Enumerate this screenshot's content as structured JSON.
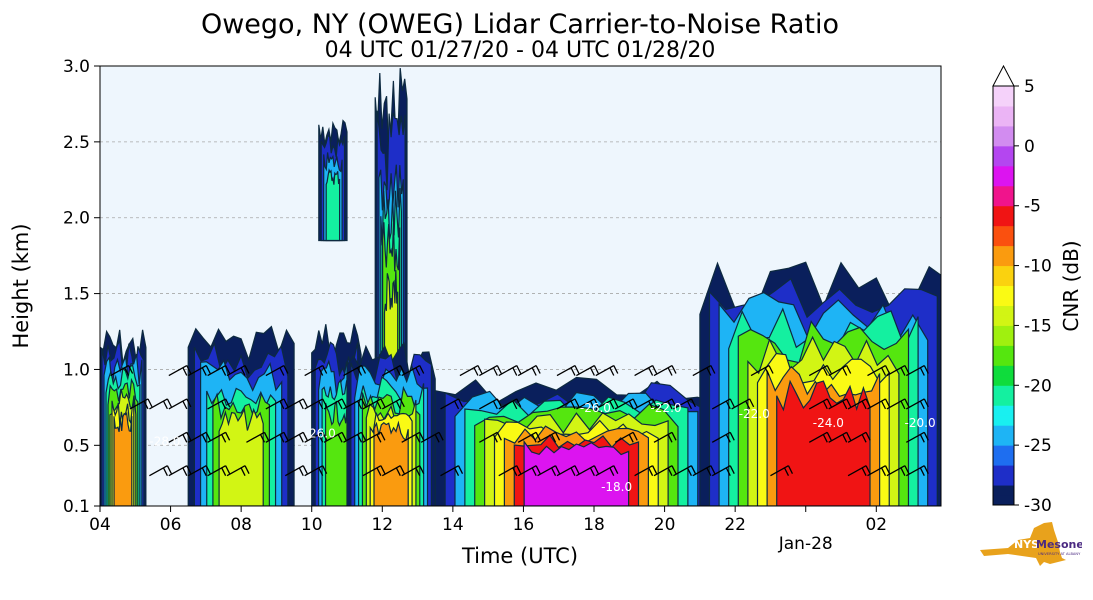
{
  "chart_data": {
    "type": "heatmap",
    "title": "Owego, NY (OWEG) Lidar Carrier-to-Noise Ratio",
    "subtitle": "04 UTC 01/27/20 - 04 UTC 01/28/20",
    "xlabel": "Time (UTC)",
    "ylabel": "Height (km)",
    "xlim": [
      "2020-01-27T04:00Z",
      "2020-01-28T03:50Z"
    ],
    "ylim": [
      0.1,
      3.0
    ],
    "x_ticks": [
      {
        "time": "2020-01-27T04:00Z",
        "label": "04"
      },
      {
        "time": "2020-01-27T06:00Z",
        "label": "06"
      },
      {
        "time": "2020-01-27T08:00Z",
        "label": "08"
      },
      {
        "time": "2020-01-27T10:00Z",
        "label": "10"
      },
      {
        "time": "2020-01-27T12:00Z",
        "label": "12"
      },
      {
        "time": "2020-01-27T14:00Z",
        "label": "14"
      },
      {
        "time": "2020-01-27T16:00Z",
        "label": "16"
      },
      {
        "time": "2020-01-27T18:00Z",
        "label": "18"
      },
      {
        "time": "2020-01-27T20:00Z",
        "label": "20"
      },
      {
        "time": "2020-01-27T22:00Z",
        "label": "22"
      },
      {
        "time": "2020-01-28T00:00Z",
        "label": "Jan-28"
      },
      {
        "time": "2020-01-28T02:00Z",
        "label": "02"
      }
    ],
    "y_ticks": [
      {
        "value": 0.1,
        "label": "0.1"
      },
      {
        "value": 0.5,
        "label": "0.5"
      },
      {
        "value": 1.0,
        "label": "1.0"
      },
      {
        "value": 1.5,
        "label": "1.5"
      },
      {
        "value": 2.0,
        "label": "2.0"
      },
      {
        "value": 2.5,
        "label": "2.5"
      },
      {
        "value": 3.0,
        "label": "3.0"
      }
    ],
    "grid": "horizontal dashed",
    "colorbar": {
      "label": "CNR (dB)",
      "min": -30,
      "max": 5,
      "extend": "max",
      "ticks": [
        5,
        0,
        -5,
        -10,
        -15,
        -20,
        -25,
        -30
      ],
      "tick_labels": [
        "5",
        "0",
        "-5",
        "-10",
        "-15",
        "-20",
        "-25",
        "-30"
      ],
      "colors": [
        "#0a1f5c",
        "#0a1f5c",
        "#1e2ec8",
        "#1e2ec8",
        "#1e6ef0",
        "#1e6ef0",
        "#1eb4f5",
        "#1eb4f5",
        "#19f0f0",
        "#19f0f0",
        "#14f0a0",
        "#14f0a0",
        "#0fdc3c",
        "#0fdc3c",
        "#55e60f",
        "#55e60f",
        "#a0f00f",
        "#a0f00f",
        "#d2f514",
        "#d2f514",
        "#fafa14",
        "#fafa14",
        "#fad20f",
        "#fad20f",
        "#fa9b0f",
        "#fa9b0f",
        "#fa500f",
        "#fa500f",
        "#f01414",
        "#f01414",
        "#f0148c",
        "#f0148c",
        "#dc14f0",
        "#dc14f0",
        "#b446f0",
        "#b446f0",
        "#d28cf0",
        "#d28cf0",
        "#ebb4f5",
        "#ebb4f5",
        "#f5d2fa",
        "#f5d2fa"
      ]
    },
    "cnr_regions": [
      {
        "hours": [
          0.0,
          1.3
        ],
        "heights": [
          0.1,
          1.2
        ],
        "peak_cnr": -8
      },
      {
        "hours": [
          2.5,
          5.5
        ],
        "heights": [
          0.1,
          1.2
        ],
        "peak_cnr": -14
      },
      {
        "hours": [
          6.2,
          7.0
        ],
        "heights": [
          1.85,
          2.6
        ],
        "peak_cnr": -20
      },
      {
        "hours": [
          6.0,
          7.4
        ],
        "heights": [
          0.1,
          1.25
        ],
        "peak_cnr": -16
      },
      {
        "hours": [
          7.8,
          8.7
        ],
        "heights": [
          0.2,
          2.8
        ],
        "peak_cnr": -15
      },
      {
        "hours": [
          7.0,
          9.5
        ],
        "heights": [
          0.1,
          1.1
        ],
        "peak_cnr": -8
      },
      {
        "hours": [
          9.5,
          17.5
        ],
        "heights": [
          0.1,
          0.9
        ],
        "peak_cnr": -3
      },
      {
        "hours": [
          17.0,
          24.0
        ],
        "heights": [
          0.1,
          1.6
        ],
        "peak_cnr": -6
      }
    ],
    "contour_labels": [
      "-28.0",
      "-26.0",
      "-24.0",
      "-22.0",
      "-20.0",
      "-18.0"
    ],
    "wind_barbs": true
  },
  "logo": {
    "name": "NYS Mesonet",
    "text_main": "NYS",
    "text_mesonet": "Mesonet",
    "text_sub": "UNIVERSITY AT ALBANY"
  }
}
